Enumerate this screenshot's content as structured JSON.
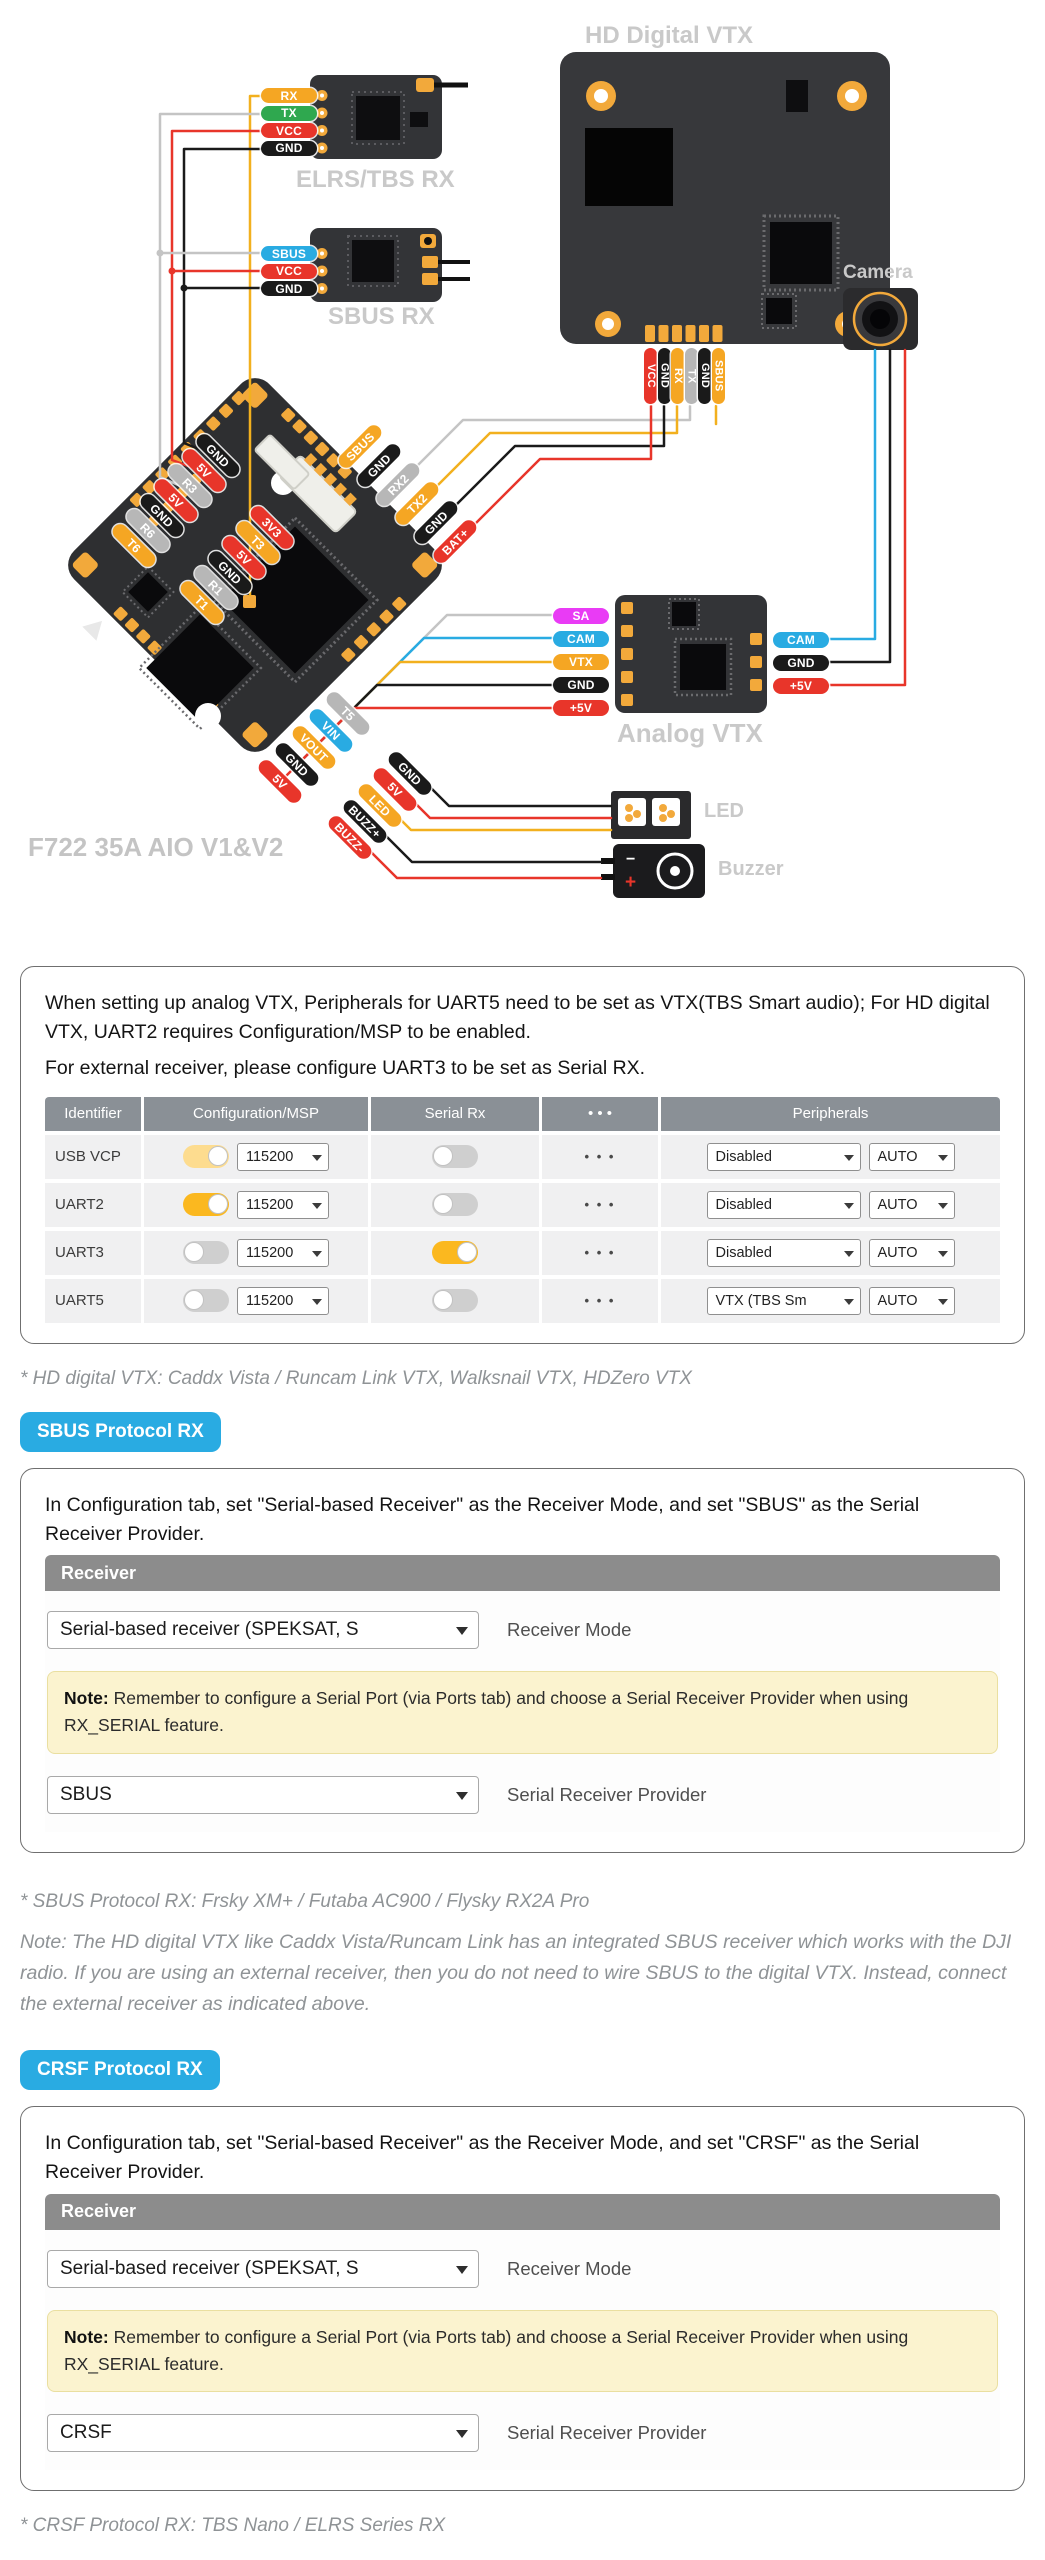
{
  "diagram": {
    "labels": {
      "hd_vtx": "HD Digital VTX",
      "elrs": "ELRS/TBS RX",
      "sbus_rx": "SBUS RX",
      "camera": "Camera",
      "analog_vtx": "Analog VTX",
      "led": "LED",
      "buzzer": "Buzzer",
      "fc": "F722 35A AIO V1&V2",
      "buzzer_minus": "−",
      "buzzer_plus": "+"
    },
    "pin_groups": {
      "elrs": {
        "labels": [
          "RX",
          "TX",
          "VCC",
          "GND"
        ],
        "colors": [
          "#F5A623",
          "#2FA84F",
          "#E8352A",
          "#1A1A1A"
        ]
      },
      "sbus_rx": {
        "labels": [
          "SBUS",
          "VCC",
          "GND"
        ],
        "colors": [
          "#29ABE2",
          "#E8352A",
          "#1A1A1A"
        ]
      },
      "hd_vtx": {
        "labels": [
          "VCC",
          "GND",
          "RX",
          "TX",
          "GND",
          "SBUS"
        ],
        "colors": [
          "#E8352A",
          "#1A1A1A",
          "#F5A623",
          "#B7B7B7",
          "#1A1A1A",
          "#F5A623"
        ]
      },
      "fc_left": {
        "labels": [
          "GND",
          "5V",
          "R3",
          "5V",
          "GND",
          "R6",
          "T6"
        ],
        "colors": [
          "#1A1A1A",
          "#E8352A",
          "#B7B7B7",
          "#E8352A",
          "#1A1A1A",
          "#B7B7B7",
          "#F5A623"
        ]
      },
      "fc_inner": {
        "labels": [
          "3V3",
          "T3",
          "5V",
          "GND",
          "R1",
          "T1"
        ],
        "colors": [
          "#E8352A",
          "#F5A623",
          "#E8352A",
          "#1A1A1A",
          "#B7B7B7",
          "#F5A623"
        ]
      },
      "fc_right": {
        "labels": [
          "SBUS",
          "GND",
          "RX2",
          "TX2",
          "GND",
          "BAT+"
        ],
        "colors": [
          "#F5A623",
          "#1A1A1A",
          "#B7B7B7",
          "#F5A623",
          "#1A1A1A",
          "#E8352A"
        ]
      },
      "fc_bottom": {
        "labels": [
          "T5",
          "VIN",
          "VOUT",
          "GND",
          "5V"
        ],
        "colors": [
          "#B7B7B7",
          "#29ABE2",
          "#F5A623",
          "#1A1A1A",
          "#E8352A"
        ]
      },
      "fc_lower": {
        "labels": [
          "GND",
          "5V",
          "LED",
          "BUZZ+",
          "BUZZ-"
        ],
        "colors": [
          "#1A1A1A",
          "#E8352A",
          "#F5A623",
          "#1A1A1A",
          "#E8352A"
        ]
      },
      "analog_left": {
        "labels": [
          "SA",
          "CAM",
          "VTX",
          "GND",
          "+5V"
        ],
        "colors": [
          "#E93BF5",
          "#29ABE2",
          "#F5A623",
          "#1A1A1A",
          "#E8352A"
        ]
      },
      "analog_right": {
        "labels": [
          "CAM",
          "GND",
          "+5V"
        ],
        "colors": [
          "#29ABE2",
          "#1A1A1A",
          "#E8352A"
        ]
      }
    }
  },
  "uart_box": {
    "p1": "When setting up analog VTX, Peripherals for UART5 need to be set as VTX(TBS Smart audio); For HD digital VTX, UART2 requires Configuration/MSP to be enabled.",
    "p2": "For external receiver, please configure UART3 to be set as Serial RX.",
    "table": {
      "headers": [
        "Identifier",
        "Configuration/MSP",
        "Serial Rx",
        "• • •",
        "Peripherals"
      ],
      "rows": [
        {
          "id": "USB VCP",
          "msp_on": true,
          "msp_dim": true,
          "baud": "115200",
          "serial_rx_on": false,
          "dots": "• • •",
          "periph": "Disabled",
          "periph2": "AUTO"
        },
        {
          "id": "UART2",
          "msp_on": true,
          "msp_dim": false,
          "baud": "115200",
          "serial_rx_on": false,
          "dots": "• • •",
          "periph": "Disabled",
          "periph2": "AUTO"
        },
        {
          "id": "UART3",
          "msp_on": false,
          "msp_dim": false,
          "baud": "115200",
          "serial_rx_on": true,
          "dots": "• • •",
          "periph": "Disabled",
          "periph2": "AUTO"
        },
        {
          "id": "UART5",
          "msp_on": false,
          "msp_dim": false,
          "baud": "115200",
          "serial_rx_on": false,
          "dots": "• • •",
          "periph": "VTX (TBS Sm",
          "periph2": "AUTO"
        }
      ]
    }
  },
  "footnotes": {
    "hd": "* HD digital VTX: Caddx Vista / Runcam Link VTX, Walksnail VTX, HDZero VTX",
    "sbus": "* SBUS Protocol RX: Frsky XM+ / Futaba AC900 / Flysky RX2A Pro",
    "crsf": "* CRSF Protocol RX: TBS Nano / ELRS Series RX",
    "hd_note": "Note: The HD digital VTX like Caddx Vista/Runcam Link has an integrated SBUS receiver which works with the DJI radio. If you are using an external receiver, then you do not need to wire SBUS to the digital VTX. Instead, connect the external receiver as indicated above."
  },
  "sbus": {
    "badge": "SBUS Protocol RX",
    "intro": "In Configuration tab, set \"Serial-based Receiver\" as the Receiver Mode, and set \"SBUS\" as the Serial Receiver Provider.",
    "panel": {
      "title": "Receiver",
      "mode_value": "Serial-based receiver (SPEKSAT, S",
      "mode_label": "Receiver Mode",
      "note_bold": "Note:",
      "note_rest": " Remember to configure a Serial Port (via Ports tab) and choose a Serial Receiver Provider when using RX_SERIAL feature.",
      "provider_value": "SBUS",
      "provider_label": "Serial Receiver Provider"
    }
  },
  "crsf": {
    "badge": "CRSF Protocol RX",
    "intro": "In Configuration tab, set \"Serial-based Receiver\" as the Receiver Mode, and set \"CRSF\" as the Serial Receiver Provider.",
    "panel": {
      "title": "Receiver",
      "mode_value": "Serial-based receiver (SPEKSAT, S",
      "mode_label": "Receiver Mode",
      "note_bold": "Note:",
      "note_rest": " Remember to configure a Serial Port (via Ports tab) and choose a Serial Receiver Provider when using RX_SERIAL feature.",
      "provider_value": "CRSF",
      "provider_label": "Serial Receiver Provider"
    }
  },
  "colors": {
    "accent_blue": "#29ABE2",
    "pill_orange": "#F5A623",
    "pill_green": "#2FA84F",
    "pill_red": "#E8352A",
    "pill_gray": "#B7B7B7",
    "pill_magenta": "#E93BF5",
    "toggle_on": "#FBB81F",
    "toggle_on_dim": "#FDDC8F",
    "table_header": "#8A9096",
    "note_bg": "#FBF3CF",
    "board_dark": "#333437",
    "pad_gold": "#F2A93B"
  }
}
